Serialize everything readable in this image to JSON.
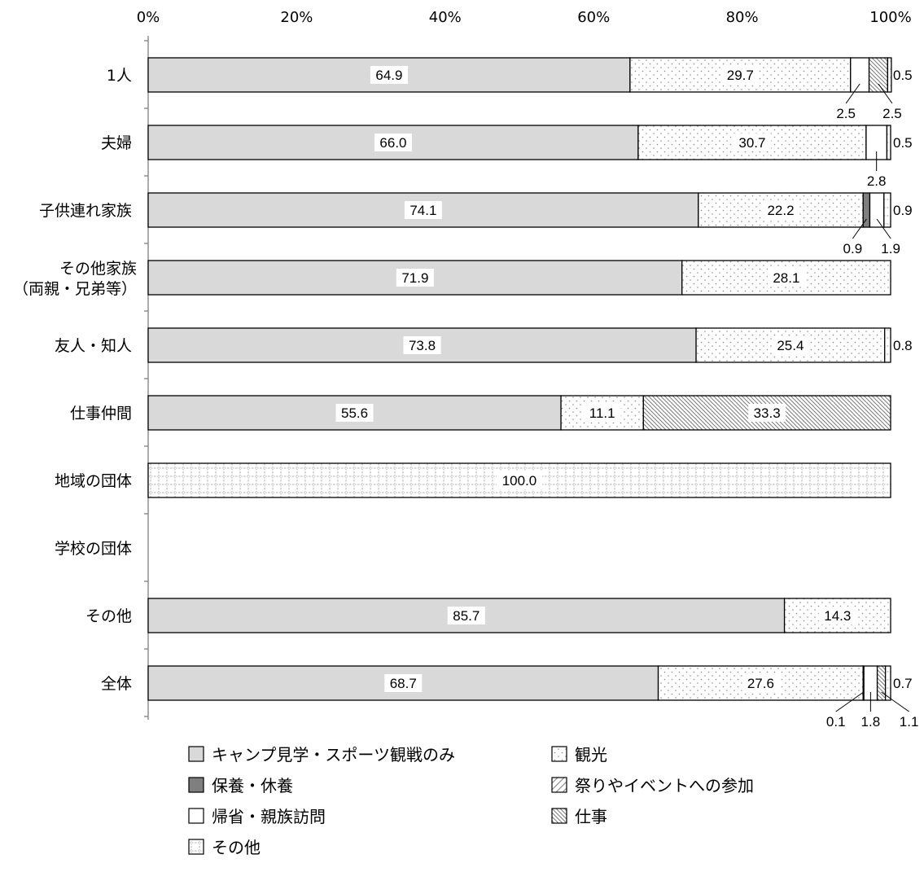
{
  "chart_data": {
    "type": "bar",
    "orientation": "horizontal",
    "stacked": true,
    "percent": true,
    "xlim": [
      0,
      100
    ],
    "x_ticks": [
      "0%",
      "20%",
      "40%",
      "60%",
      "80%",
      "100%"
    ],
    "x_tick_values": [
      0,
      20,
      40,
      60,
      80,
      100
    ],
    "categories": [
      [
        "1人"
      ],
      [
        "夫婦"
      ],
      [
        "子供連れ家族"
      ],
      [
        "その他家族",
        "（両親・兄弟等）"
      ],
      [
        "友人・知人"
      ],
      [
        "仕事仲間"
      ],
      [
        "地域の団体"
      ],
      [
        "学校の団体"
      ],
      [
        "その他"
      ],
      [
        "全体"
      ]
    ],
    "series": [
      {
        "name": "キャンプ見学・スポーツ観戦のみ",
        "pattern": "solid-light",
        "values": [
          64.9,
          66.0,
          74.1,
          71.9,
          73.8,
          55.6,
          0,
          0,
          85.7,
          68.7
        ]
      },
      {
        "name": "観光",
        "pattern": "dots",
        "values": [
          29.7,
          30.7,
          22.2,
          28.1,
          25.4,
          11.1,
          0,
          0,
          14.3,
          27.6
        ]
      },
      {
        "name": "保養・休養",
        "pattern": "solid-dark",
        "values": [
          0,
          0,
          0.9,
          0,
          0,
          0,
          0,
          0,
          0,
          0.1
        ]
      },
      {
        "name": "祭りやイベントへの参加",
        "pattern": "diagonal-light",
        "values": [
          0,
          0,
          0,
          0,
          0,
          0,
          0,
          0,
          0,
          0
        ]
      },
      {
        "name": "帰省・親族訪問",
        "pattern": "white",
        "values": [
          2.5,
          2.8,
          1.9,
          0,
          0,
          0,
          0,
          0,
          0,
          1.8
        ]
      },
      {
        "name": "仕事",
        "pattern": "diagonal-dense",
        "values": [
          2.5,
          0,
          0,
          0,
          0,
          33.3,
          0,
          0,
          0,
          1.1
        ]
      },
      {
        "name": "その他",
        "pattern": "grid",
        "values": [
          0.5,
          0.5,
          0.9,
          0,
          0.8,
          0,
          100.0,
          0,
          0,
          0.7
        ]
      }
    ],
    "legend_placement": "bottom",
    "legend_columns": 2,
    "colors": {
      "light": "#d9d9d9",
      "dark": "#7f7f7f",
      "border": "#000000"
    }
  }
}
